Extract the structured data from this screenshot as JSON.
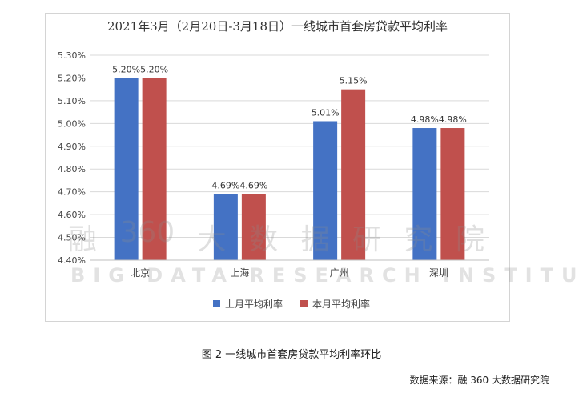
{
  "chart_data": {
    "type": "bar",
    "title": "2021年3月（2月20日-3月18日）一线城市首套房贷款平均利率",
    "categories": [
      "北京",
      "上海",
      "广州",
      "深圳"
    ],
    "series": [
      {
        "name": "上月平均利率",
        "color": "#4472c4",
        "values": [
          5.2,
          4.69,
          5.01,
          4.98
        ]
      },
      {
        "name": "本月平均利率",
        "color": "#c0504d",
        "values": [
          5.2,
          4.69,
          5.15,
          4.98
        ]
      }
    ],
    "data_labels": [
      [
        "5.20%",
        "4.69%",
        "5.01%",
        "4.98%"
      ],
      [
        "5.20%",
        "4.69%",
        "5.15%",
        "4.98%"
      ]
    ],
    "ylim": [
      4.4,
      5.3
    ],
    "yticks": [
      "4.40%",
      "4.50%",
      "4.60%",
      "4.70%",
      "4.80%",
      "4.90%",
      "5.00%",
      "5.10%",
      "5.20%",
      "5.30%"
    ],
    "grid": true,
    "legend_position": "bottom"
  },
  "caption": "图 2  一线城市首套房贷款平均利率环比",
  "source": "数据来源：融 360 大数据研究院",
  "watermark": {
    "chars": [
      "融",
      "360",
      "大",
      "数",
      "据",
      "研",
      "究",
      "院"
    ],
    "english": "BIG DATA RESEARCH INSTITUTE"
  }
}
